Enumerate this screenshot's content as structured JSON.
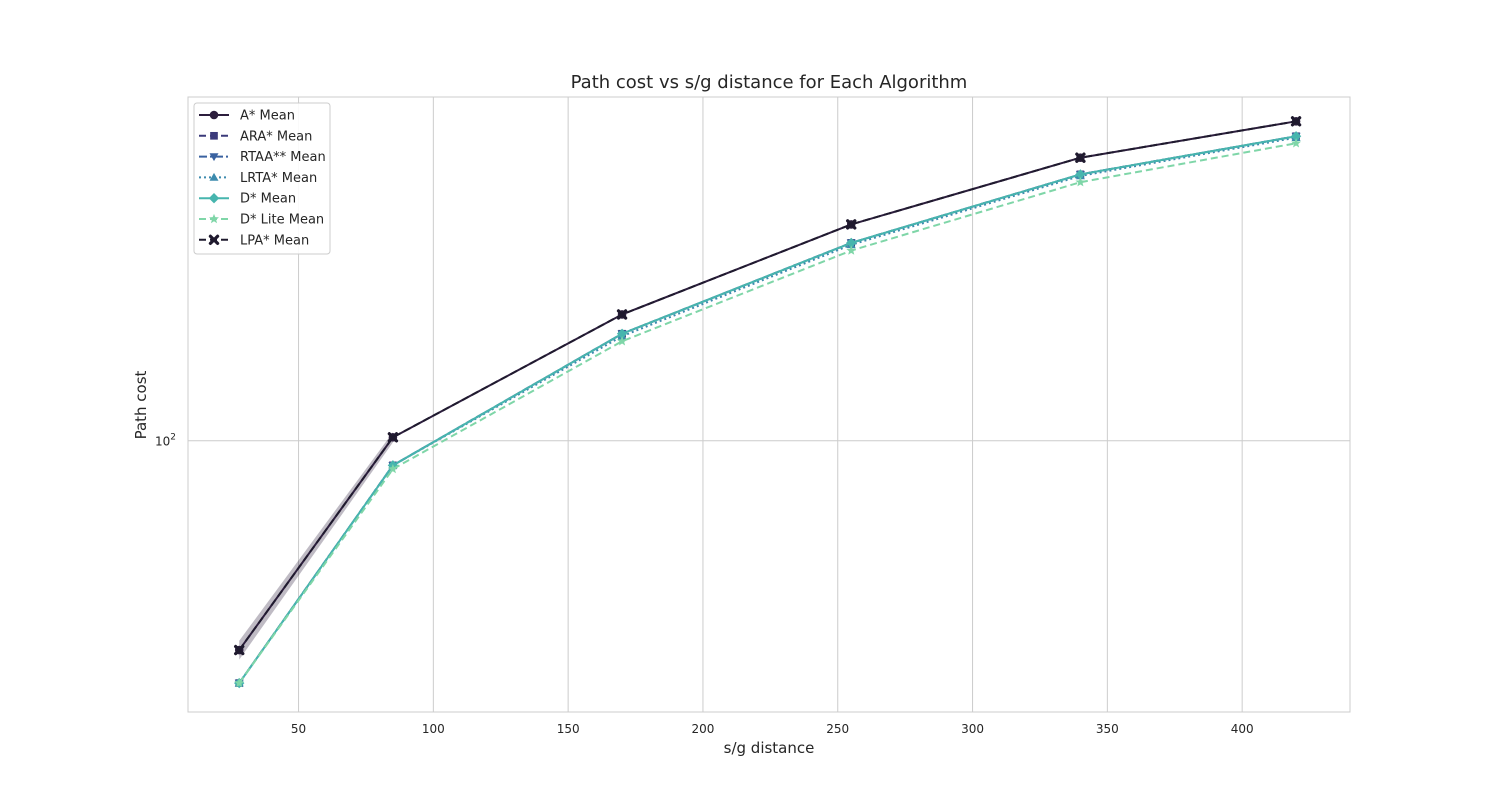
{
  "chart_data": {
    "type": "line",
    "title": "Path cost vs s/g distance for Each Algorithm",
    "xlabel": "s/g distance",
    "ylabel": "Path cost",
    "xlim": [
      9,
      440
    ],
    "ylim": [
      45,
      275
    ],
    "yscale": "log",
    "grid": true,
    "legend_position": "top-left",
    "x_ticks": [
      50,
      100,
      150,
      200,
      250,
      300,
      350,
      400
    ],
    "x_tick_labels": [
      "50",
      "100",
      "150",
      "200",
      "250",
      "300",
      "350",
      "400"
    ],
    "y_ticks": [
      100
    ],
    "y_tick_base": "10",
    "y_tick_exponent": "2",
    "x": [
      28,
      85,
      170,
      255,
      340,
      420
    ],
    "series": [
      {
        "name": "A* Mean",
        "values": [
          54,
          101,
          145,
          189,
          230,
          256
        ],
        "color": "#2c1e3d",
        "dash": "solid",
        "marker": "circle",
        "band": [
          [
            52.5,
            55.5
          ],
          [
            99.5,
            102.5
          ]
        ]
      },
      {
        "name": "ARA* Mean",
        "values": [
          49,
          93,
          137,
          179,
          219,
          245
        ],
        "color": "#3b3a7a",
        "dash": "dashed",
        "marker": "square"
      },
      {
        "name": "RTAA** Mean",
        "values": [
          49,
          93,
          137,
          179,
          219,
          245
        ],
        "color": "#3a62a0",
        "dash": "dashdot",
        "marker": "triangle-down"
      },
      {
        "name": "LRTA* Mean",
        "values": [
          49,
          93,
          136,
          178,
          218,
          244
        ],
        "color": "#3d8bae",
        "dash": "dotted",
        "marker": "triangle-up"
      },
      {
        "name": "D* Mean",
        "values": [
          49,
          93,
          137,
          179,
          219,
          245
        ],
        "color": "#47b5ae",
        "dash": "solid",
        "marker": "diamond"
      },
      {
        "name": "D* Lite Mean",
        "values": [
          49,
          92,
          134,
          175,
          214,
          240
        ],
        "color": "#7fd6a8",
        "dash": "dashed",
        "marker": "star"
      },
      {
        "name": "LPA* Mean",
        "values": [
          54,
          101,
          145,
          189,
          230,
          256
        ],
        "color": "#1f1a2e",
        "dash": "dashed",
        "marker": "x"
      }
    ]
  }
}
